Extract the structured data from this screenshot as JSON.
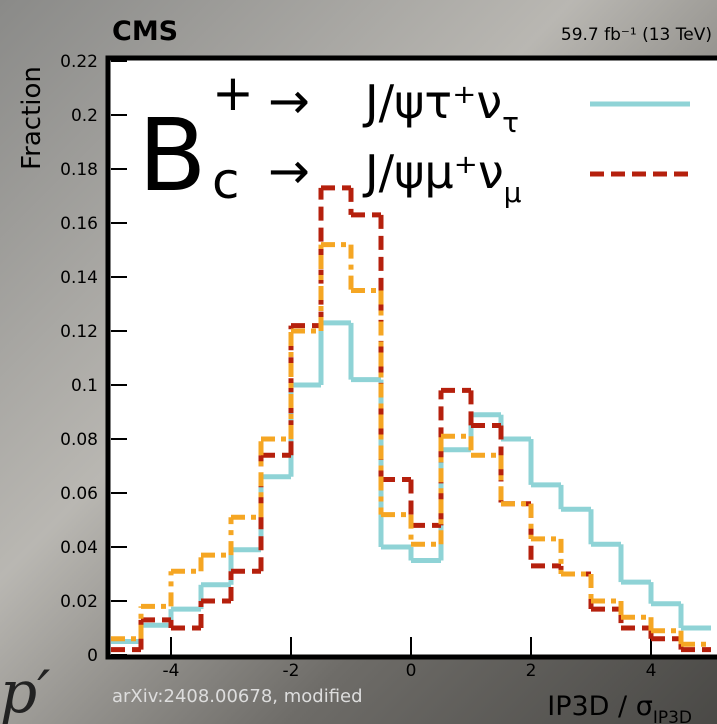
{
  "chart_data": {
    "type": "histogram",
    "experiment": "CMS",
    "lumi": "59.7 fb⁻¹ (13 TeV)",
    "ylabel": "Fraction",
    "xlabel": "IP3D / σ",
    "xlabel_sub": "IP3D",
    "legend_particle": {
      "base": "B",
      "sup": "+",
      "sub": "c",
      "arrow": "→"
    },
    "annotation": "arXiv:2408.00678, modified",
    "background_text": "p′",
    "bins": [
      -5,
      -4.5,
      -4,
      -3.5,
      -3,
      -2.5,
      -2,
      -1.5,
      -1,
      -0.5,
      0,
      0.5,
      1,
      1.5,
      2,
      2.5,
      3,
      3.5,
      4,
      4.5,
      5
    ],
    "series": [
      {
        "name": "J/ψτ⁺ν",
        "name_sub": "τ",
        "color": "#8fd3d6",
        "style": "solid",
        "values": [
          0.005,
          0.011,
          0.017,
          0.026,
          0.039,
          0.066,
          0.1,
          0.123,
          0.102,
          0.04,
          0.035,
          0.076,
          0.089,
          0.08,
          0.063,
          0.054,
          0.041,
          0.027,
          0.019,
          0.01
        ]
      },
      {
        "name": "J/ψμ⁺ν",
        "name_sub": "μ",
        "color": "#b5200d",
        "style": "dashed",
        "values": [
          0.002,
          0.013,
          0.01,
          0.02,
          0.031,
          0.074,
          0.122,
          0.173,
          0.163,
          0.065,
          0.048,
          0.098,
          0.085,
          0.056,
          0.033,
          0.03,
          0.017,
          0.01,
          0.006,
          0.002
        ]
      },
      {
        "color": "#f5a623",
        "style": "dashdot",
        "values": [
          0.006,
          0.018,
          0.031,
          0.037,
          0.051,
          0.08,
          0.12,
          0.152,
          0.135,
          0.052,
          0.041,
          0.081,
          0.074,
          0.056,
          0.043,
          0.03,
          0.02,
          0.014,
          0.009,
          0.004
        ]
      }
    ],
    "xlim": [
      -5,
      5
    ],
    "xticks": [
      -4,
      -2,
      0,
      2,
      4
    ],
    "ylim": [
      0,
      0.22
    ],
    "yticks": [
      0,
      0.02,
      0.04,
      0.06,
      0.08,
      0.1,
      0.12,
      0.14,
      0.16,
      0.18,
      0.2,
      0.22
    ]
  }
}
